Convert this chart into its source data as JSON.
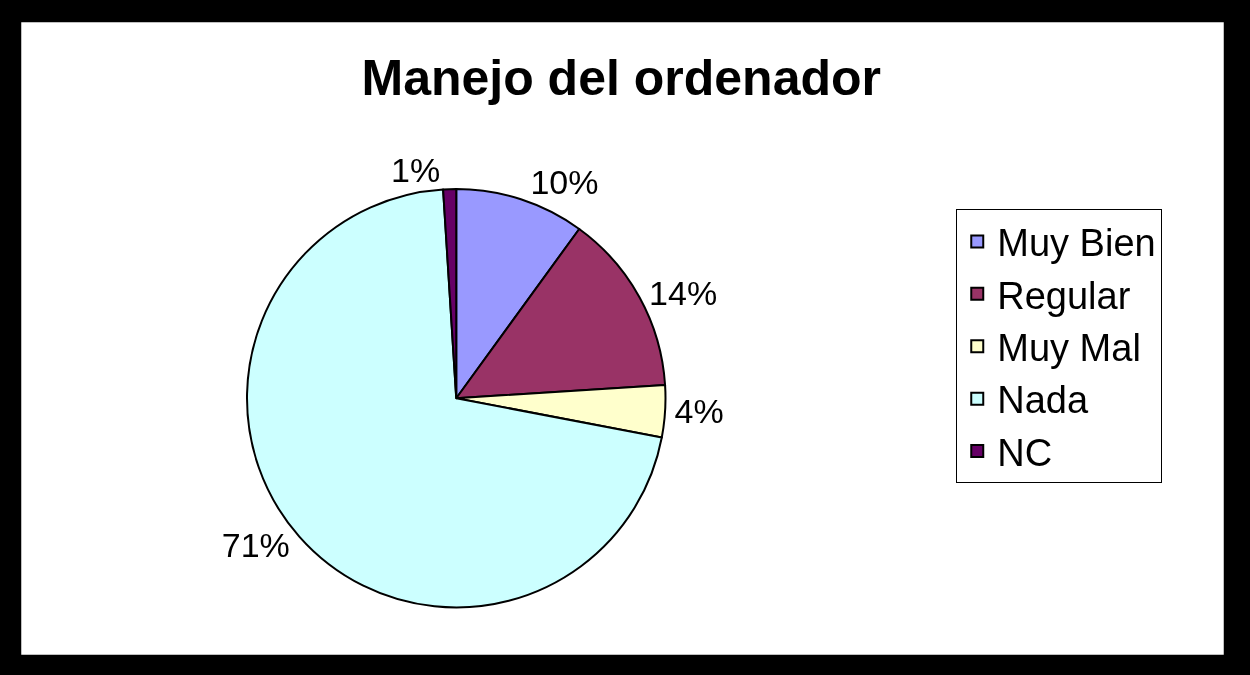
{
  "chart_data": {
    "type": "pie",
    "title": "Manejo del ordenador",
    "categories": [
      "Muy Bien",
      "Regular",
      "Muy Mal",
      "Nada",
      "NC"
    ],
    "values": [
      10,
      14,
      4,
      71,
      1
    ],
    "colors": [
      "#9999ff",
      "#993366",
      "#ffffcc",
      "#ccffff",
      "#660066"
    ],
    "value_labels": [
      "10%",
      "14%",
      "4%",
      "71%",
      "1%"
    ],
    "legend": "right"
  }
}
